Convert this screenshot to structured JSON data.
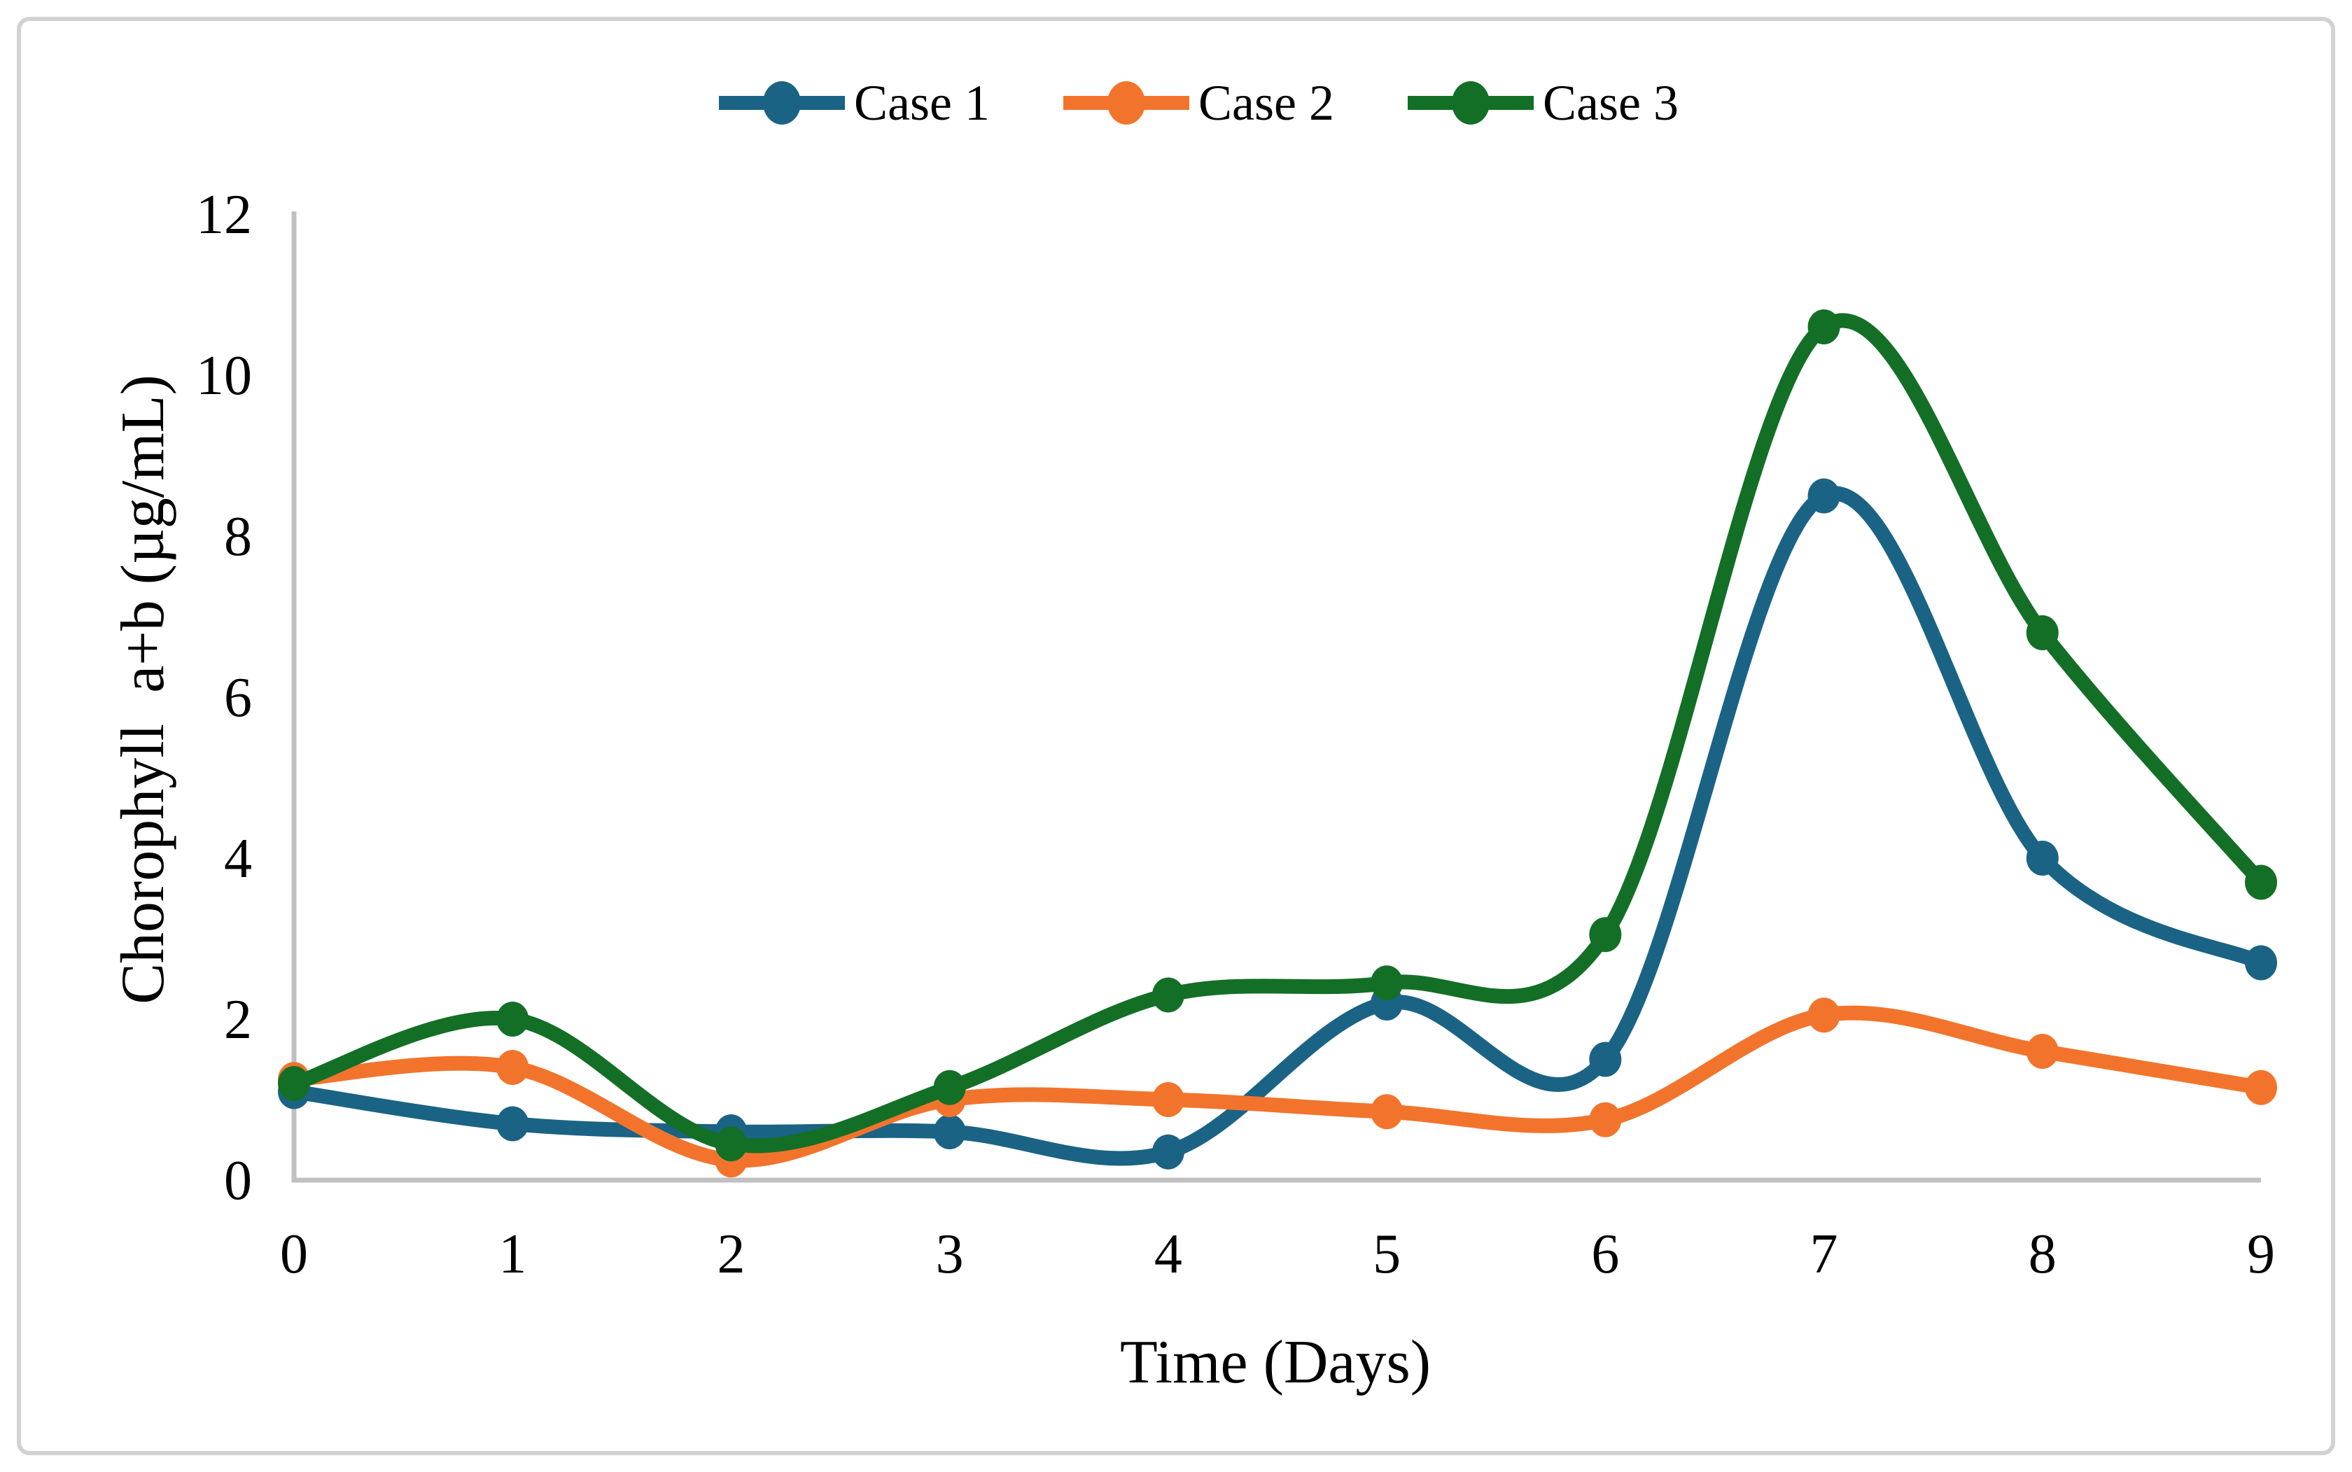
{
  "figure": {
    "border_color": "#d2d2d2",
    "background_color": "#ffffff",
    "axis_line_color": "#c0c0c0",
    "text_color": "#000000"
  },
  "legend": {
    "items": [
      "Case 1",
      "Case 2",
      "Case 3"
    ]
  },
  "chart_data": {
    "type": "line",
    "title": "",
    "xlabel": "Time (Days)",
    "ylabel": "Chorophyll  a+b (µg/mL)",
    "x": [
      0,
      1,
      2,
      3,
      4,
      5,
      6,
      7,
      8,
      9
    ],
    "x_ticks": [
      "0",
      "1",
      "2",
      "3",
      "4",
      "5",
      "6",
      "7",
      "8",
      "9"
    ],
    "y_ticks": [
      "0",
      "2",
      "4",
      "6",
      "8",
      "10",
      "12"
    ],
    "y_tick_values": [
      0,
      2,
      4,
      6,
      8,
      10,
      12
    ],
    "xlim": [
      0,
      9
    ],
    "ylim": [
      0,
      12
    ],
    "grid": false,
    "smooth": true,
    "legend_position": "top-center",
    "series": [
      {
        "name": "Case 1",
        "color": "#1b6384",
        "values": [
          1.1,
          0.7,
          0.6,
          0.6,
          0.35,
          2.2,
          1.5,
          8.5,
          4.0,
          2.7
        ]
      },
      {
        "name": "Case 2",
        "color": "#f2742c",
        "values": [
          1.25,
          1.4,
          0.25,
          1.0,
          1.0,
          0.85,
          0.75,
          2.05,
          1.6,
          1.15
        ]
      },
      {
        "name": "Case 3",
        "color": "#136f26",
        "values": [
          1.2,
          2.0,
          0.45,
          1.15,
          2.3,
          2.45,
          3.05,
          10.6,
          6.8,
          3.7
        ]
      }
    ]
  }
}
